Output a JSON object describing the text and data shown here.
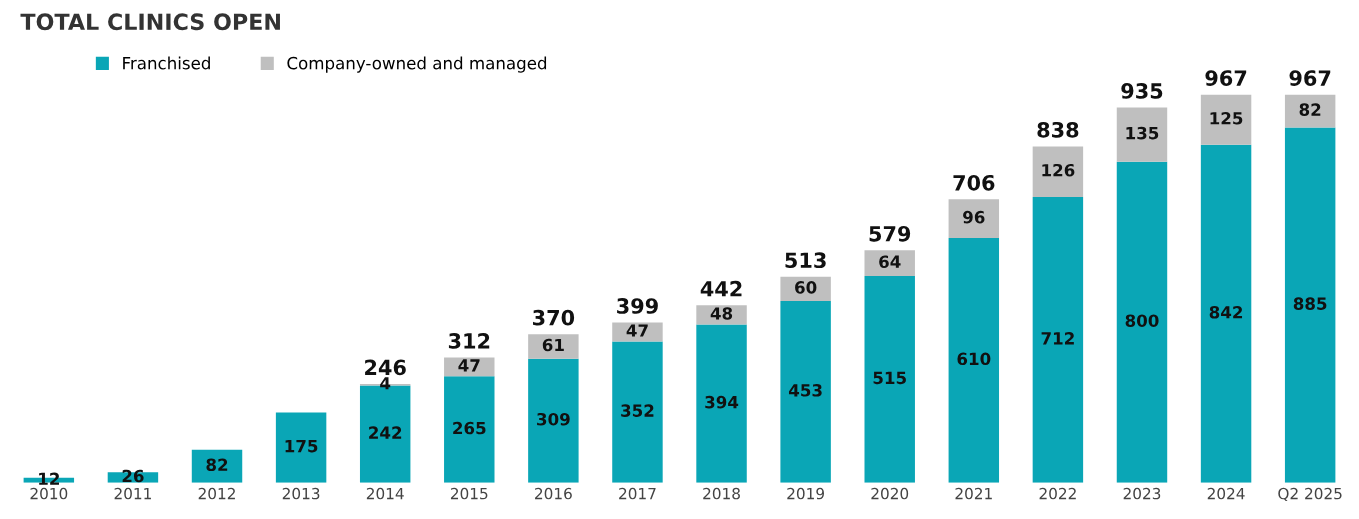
{
  "chart_data": {
    "type": "bar",
    "title": "TOTAL CLINICS OPEN",
    "categories": [
      "2010",
      "2011",
      "2012",
      "2013",
      "2014",
      "2015",
      "2016",
      "2017",
      "2018",
      "2019",
      "2020",
      "2021",
      "2022",
      "2023",
      "2024",
      "Q2 2025"
    ],
    "stacked": true,
    "series": [
      {
        "name": "Franchised",
        "color": "#0aa6b6",
        "values": [
          12,
          26,
          82,
          175,
          242,
          265,
          309,
          352,
          394,
          453,
          515,
          610,
          712,
          800,
          842,
          885
        ]
      },
      {
        "name": "Company-owned and managed",
        "color": "#bfbfbf",
        "values": [
          null,
          null,
          null,
          null,
          4,
          47,
          61,
          47,
          48,
          60,
          64,
          96,
          126,
          135,
          125,
          82
        ]
      }
    ],
    "totals": [
      null,
      null,
      null,
      null,
      "246",
      "312",
      "370",
      "399",
      "442",
      "513",
      "579",
      "706",
      "838",
      "935",
      "967",
      "967"
    ],
    "data_labels": true,
    "legend": "top left",
    "grid": false,
    "tick_labels": "x"
  }
}
